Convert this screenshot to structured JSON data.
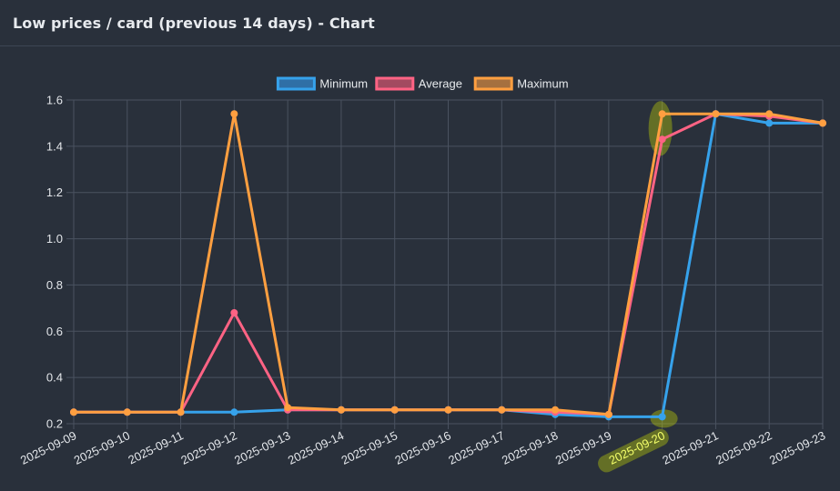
{
  "header": {
    "title": "Low prices / card (previous 14 days) - Chart"
  },
  "colors": {
    "background": "#29303b",
    "grid": "#4a5260",
    "highlight": "#d4e600"
  },
  "chart_data": {
    "type": "line",
    "title": "",
    "xlabel": "",
    "ylabel": "",
    "x": [
      "2025-09-09",
      "2025-09-10",
      "2025-09-11",
      "2025-09-12",
      "2025-09-13",
      "2025-09-14",
      "2025-09-15",
      "2025-09-16",
      "2025-09-17",
      "2025-09-18",
      "2025-09-19",
      "2025-09-20",
      "2025-09-21",
      "2025-09-22",
      "2025-09-23"
    ],
    "ylim": [
      0.2,
      1.6
    ],
    "yticks": [
      "1.6",
      "1.4",
      "1.2",
      "1.0",
      "0.8",
      "0.6",
      "0.4",
      "0.2"
    ],
    "grid": true,
    "legend_position": "top-center",
    "highlighted_x": "2025-09-20",
    "series": [
      {
        "name": "Minimum",
        "color": "#36a2eb",
        "legend_fill": "#2f6fa6",
        "values": [
          0.25,
          0.25,
          0.25,
          0.25,
          0.26,
          0.26,
          0.26,
          0.26,
          0.26,
          0.24,
          0.23,
          0.23,
          1.54,
          1.5,
          1.5
        ]
      },
      {
        "name": "Average",
        "color": "#ff6384",
        "legend_fill": "#a34a60",
        "values": [
          0.25,
          0.25,
          0.25,
          0.68,
          0.26,
          0.26,
          0.26,
          0.26,
          0.26,
          0.25,
          0.24,
          1.43,
          1.54,
          1.53,
          1.5
        ]
      },
      {
        "name": "Maximum",
        "color": "#ff9f40",
        "legend_fill": "#a5703f",
        "values": [
          0.25,
          0.25,
          0.25,
          1.54,
          0.27,
          0.26,
          0.26,
          0.26,
          0.26,
          0.26,
          0.24,
          1.54,
          1.54,
          1.54,
          1.5
        ]
      }
    ]
  }
}
